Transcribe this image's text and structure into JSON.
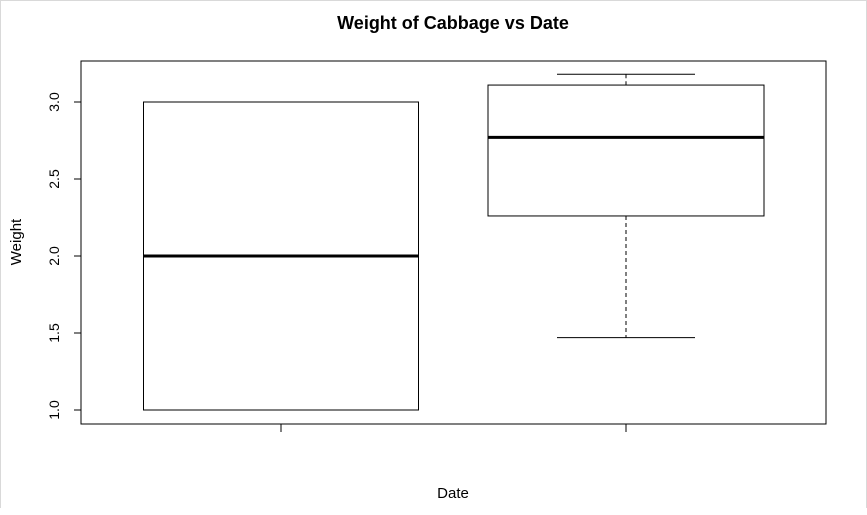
{
  "chart_data": {
    "type": "box",
    "title": "Weight of Cabbage vs Date",
    "xlabel": "Date",
    "ylabel": "Weight",
    "ylim": [
      0.93,
      3.3
    ],
    "yticks": [
      "1.0",
      "1.5",
      "2.0",
      "2.5",
      "3.0"
    ],
    "yticks_values": [
      1.0,
      1.5,
      2.0,
      2.5,
      3.0
    ],
    "categories": [
      "",
      ""
    ],
    "boxes": [
      {
        "whisker_low": 1.0,
        "q1": 1.0,
        "median": 2.0,
        "q3": 3.0,
        "whisker_high": 3.0
      },
      {
        "whisker_low": 1.47,
        "q1": 2.26,
        "median": 2.77,
        "q3": 3.11,
        "whisker_high": 3.18
      }
    ],
    "grid": false
  }
}
